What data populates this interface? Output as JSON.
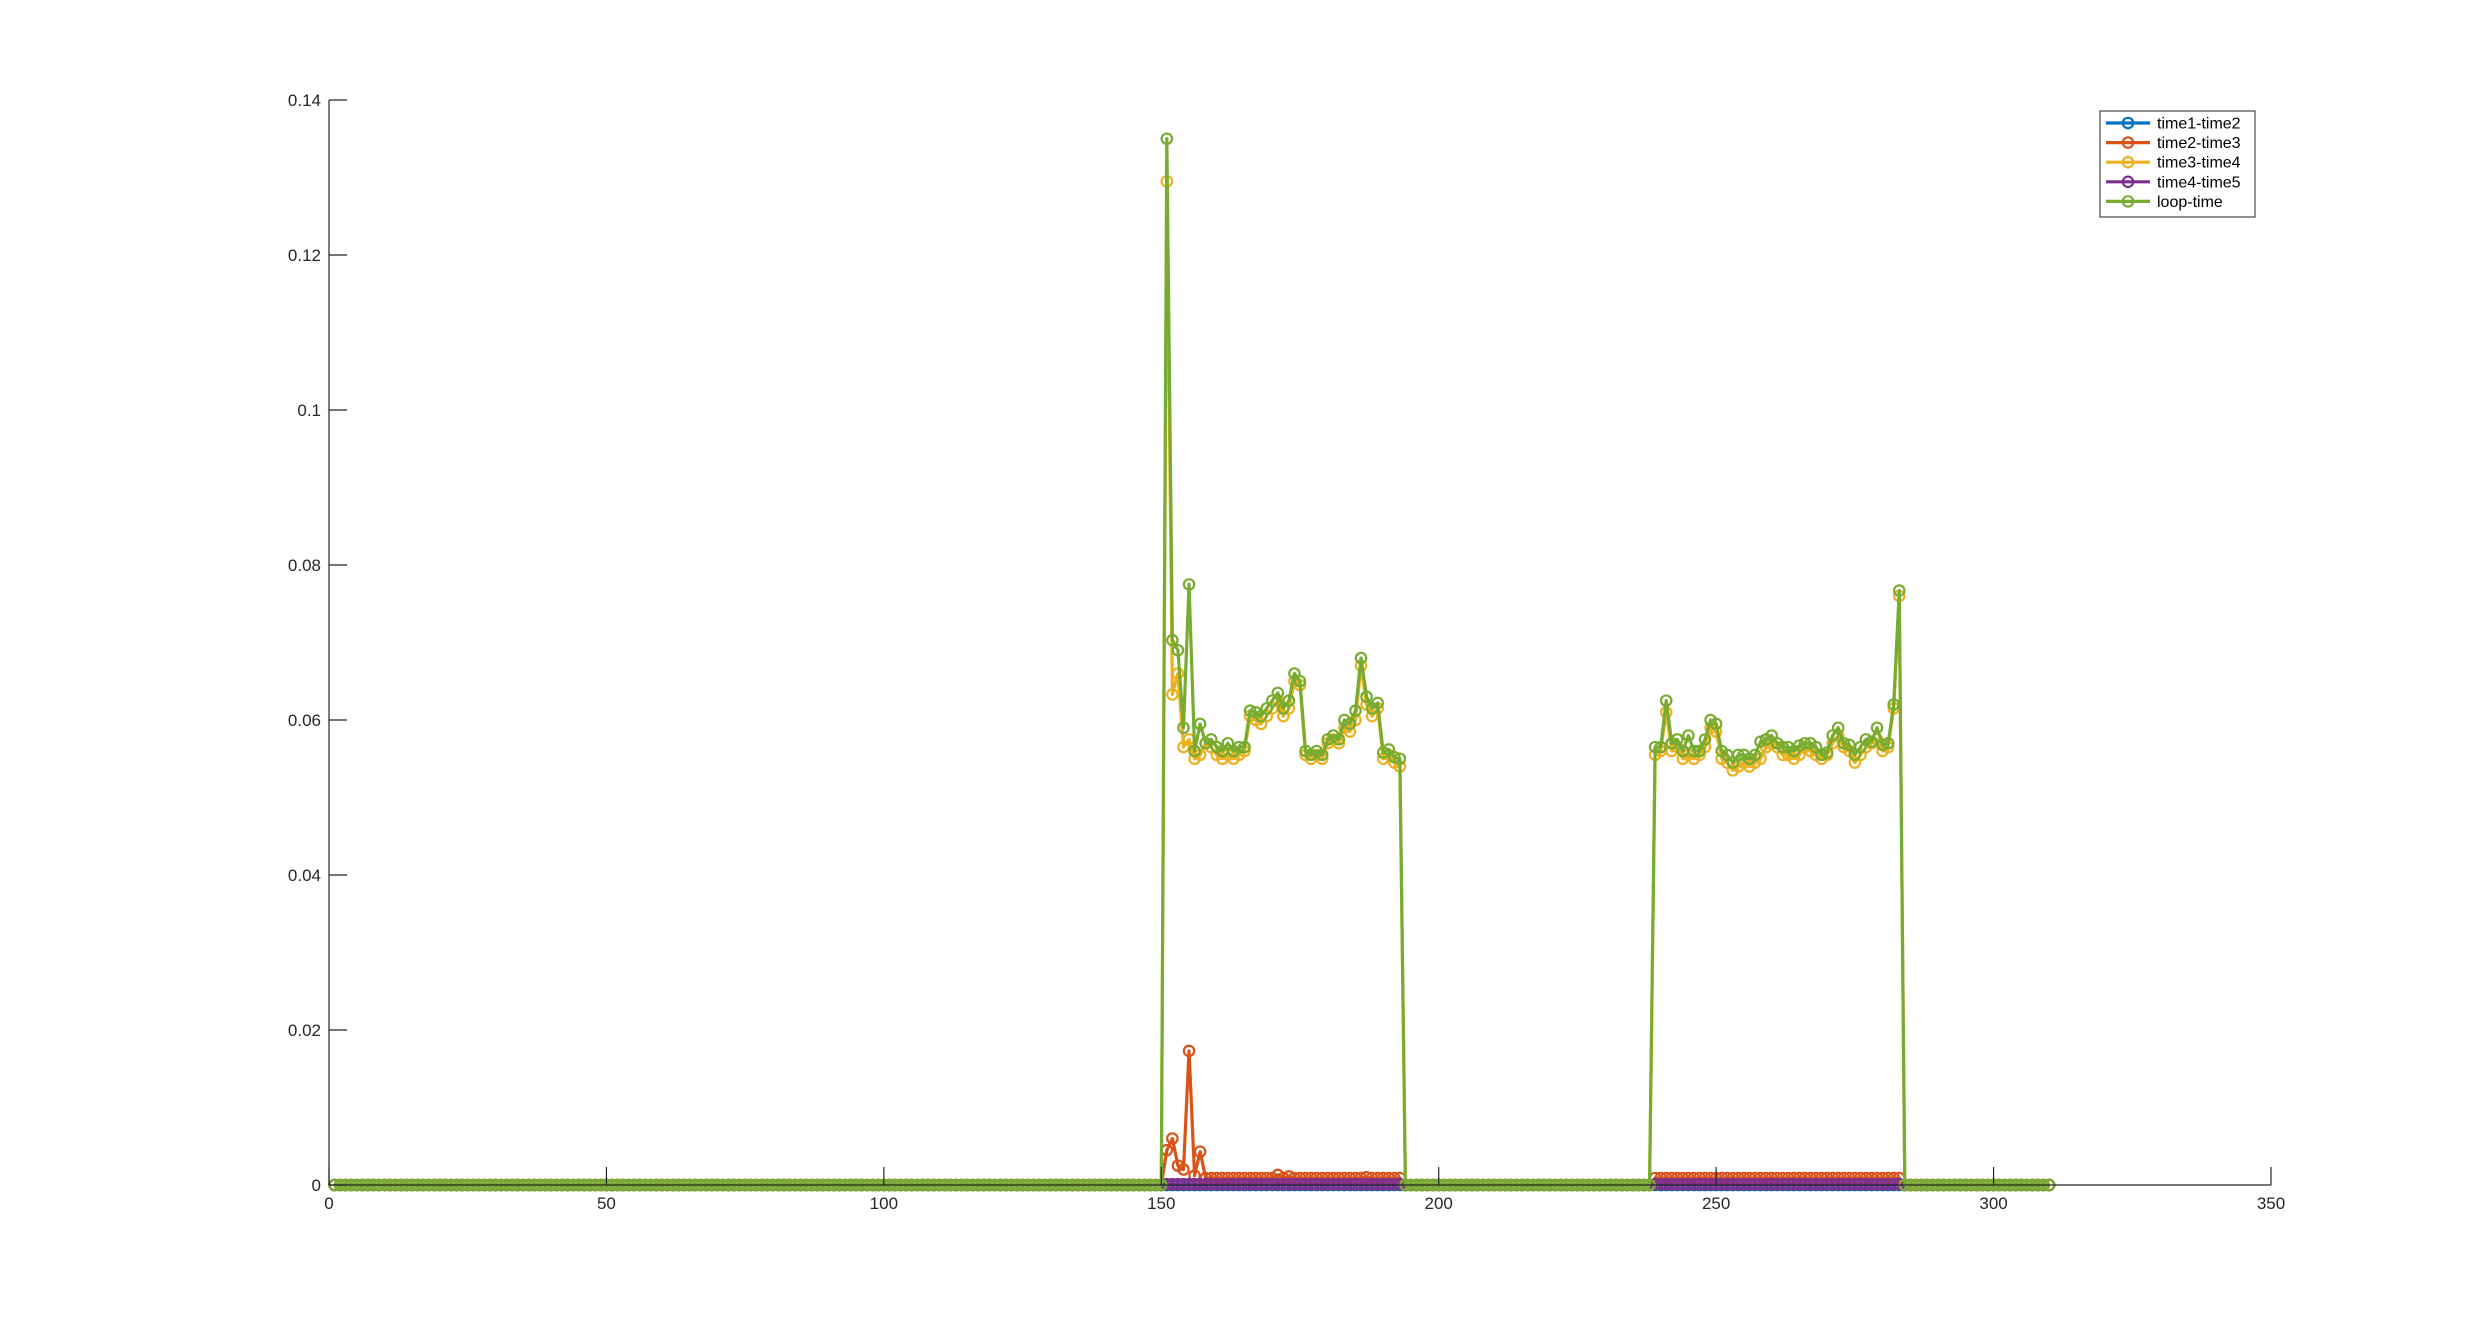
{
  "chart_data": {
    "type": "line",
    "title": "",
    "xlabel": "",
    "ylabel": "",
    "xlim": [
      0,
      350
    ],
    "ylim": [
      0,
      0.14
    ],
    "x_ticks": [
      0,
      50,
      100,
      150,
      200,
      250,
      300,
      350
    ],
    "y_ticks": [
      0,
      0.02,
      0.04,
      0.06,
      0.08,
      0.1,
      0.12,
      0.14
    ],
    "x_tick_labels": [
      "0",
      "50",
      "100",
      "150",
      "200",
      "250",
      "300",
      "350"
    ],
    "y_tick_labels": [
      "0",
      "0.02",
      "0.04",
      "0.06",
      "0.08",
      "0.1",
      "0.12",
      "0.14"
    ],
    "grid": false,
    "legend_position": "top-right",
    "marker": "circle",
    "x_range": [
      1,
      310
    ],
    "active_segments": [
      [
        151,
        193
      ],
      [
        239,
        283
      ]
    ],
    "series": [
      {
        "name": "time1-time2",
        "color": "#0072BD",
        "values": {}
      },
      {
        "name": "time2-time3",
        "color": "#D95319",
        "default_active": 0.0009,
        "values": {
          "151": 0.0045,
          "152": 0.006,
          "153": 0.0025,
          "154": 0.002,
          "155": 0.0173,
          "156": 0.0012,
          "157": 0.0043,
          "171": 0.0013,
          "173": 0.0011,
          "187": 0.001
        }
      },
      {
        "name": "time3-time4",
        "color": "#EDB120",
        "values": {
          "151": 0.1295,
          "152": 0.0633,
          "153": 0.066,
          "154": 0.0565,
          "155": 0.0575,
          "156": 0.055,
          "157": 0.0555,
          "158": 0.057,
          "159": 0.0565,
          "160": 0.0555,
          "161": 0.055,
          "162": 0.0555,
          "163": 0.055,
          "164": 0.0555,
          "165": 0.056,
          "166": 0.0605,
          "167": 0.06,
          "168": 0.0595,
          "169": 0.0605,
          "170": 0.0615,
          "171": 0.0625,
          "172": 0.0605,
          "173": 0.0615,
          "174": 0.065,
          "175": 0.0645,
          "176": 0.0555,
          "177": 0.055,
          "178": 0.0555,
          "179": 0.055,
          "180": 0.057,
          "181": 0.0575,
          "182": 0.057,
          "183": 0.059,
          "184": 0.0585,
          "185": 0.06,
          "186": 0.067,
          "187": 0.062,
          "188": 0.0605,
          "189": 0.0615,
          "190": 0.055,
          "191": 0.0555,
          "192": 0.0545,
          "193": 0.054,
          "239": 0.0555,
          "240": 0.056,
          "241": 0.061,
          "242": 0.056,
          "243": 0.0565,
          "244": 0.055,
          "245": 0.0555,
          "246": 0.055,
          "247": 0.0555,
          "248": 0.0565,
          "249": 0.059,
          "250": 0.0585,
          "251": 0.055,
          "252": 0.0545,
          "253": 0.0535,
          "254": 0.054,
          "255": 0.0545,
          "256": 0.054,
          "257": 0.0545,
          "258": 0.055,
          "259": 0.0565,
          "260": 0.057,
          "261": 0.0565,
          "262": 0.0555,
          "263": 0.0555,
          "264": 0.055,
          "265": 0.0555,
          "266": 0.0565,
          "267": 0.056,
          "268": 0.0555,
          "269": 0.055,
          "270": 0.0555,
          "271": 0.057,
          "272": 0.058,
          "273": 0.0565,
          "274": 0.056,
          "275": 0.0545,
          "276": 0.0555,
          "277": 0.0565,
          "278": 0.057,
          "279": 0.0575,
          "280": 0.056,
          "281": 0.0565,
          "282": 0.0615,
          "283": 0.076
        }
      },
      {
        "name": "time4-time5",
        "color": "#7E2F8E",
        "default_active": 0.0001,
        "values": {}
      },
      {
        "name": "loop-time",
        "color": "#77AC30",
        "values": {
          "151": 0.135,
          "152": 0.0703,
          "153": 0.069,
          "154": 0.059,
          "155": 0.0775,
          "156": 0.056,
          "157": 0.0595,
          "158": 0.057,
          "159": 0.0575,
          "160": 0.0565,
          "161": 0.056,
          "162": 0.057,
          "163": 0.056,
          "164": 0.0565,
          "165": 0.0565,
          "166": 0.0612,
          "167": 0.061,
          "168": 0.0605,
          "169": 0.0615,
          "170": 0.0625,
          "171": 0.0635,
          "172": 0.0615,
          "173": 0.0625,
          "174": 0.066,
          "175": 0.065,
          "176": 0.056,
          "177": 0.0555,
          "178": 0.056,
          "179": 0.0555,
          "180": 0.0575,
          "181": 0.058,
          "182": 0.0575,
          "183": 0.06,
          "184": 0.0595,
          "185": 0.0612,
          "186": 0.068,
          "187": 0.063,
          "188": 0.0615,
          "189": 0.0622,
          "190": 0.0558,
          "191": 0.0562,
          "192": 0.0552,
          "193": 0.055,
          "239": 0.0565,
          "240": 0.0565,
          "241": 0.0625,
          "242": 0.057,
          "243": 0.0575,
          "244": 0.056,
          "245": 0.058,
          "246": 0.056,
          "247": 0.056,
          "248": 0.0575,
          "249": 0.06,
          "250": 0.0595,
          "251": 0.056,
          "252": 0.0555,
          "253": 0.0545,
          "254": 0.0555,
          "255": 0.0555,
          "256": 0.055,
          "257": 0.0555,
          "258": 0.0572,
          "259": 0.0575,
          "260": 0.058,
          "261": 0.057,
          "262": 0.0565,
          "263": 0.0565,
          "264": 0.056,
          "265": 0.0567,
          "266": 0.057,
          "267": 0.057,
          "268": 0.0565,
          "269": 0.0555,
          "270": 0.0558,
          "271": 0.058,
          "272": 0.059,
          "273": 0.057,
          "274": 0.0568,
          "275": 0.0555,
          "276": 0.0565,
          "277": 0.0575,
          "278": 0.0572,
          "279": 0.059,
          "280": 0.0568,
          "281": 0.057,
          "282": 0.062,
          "283": 0.0767
        }
      }
    ]
  }
}
